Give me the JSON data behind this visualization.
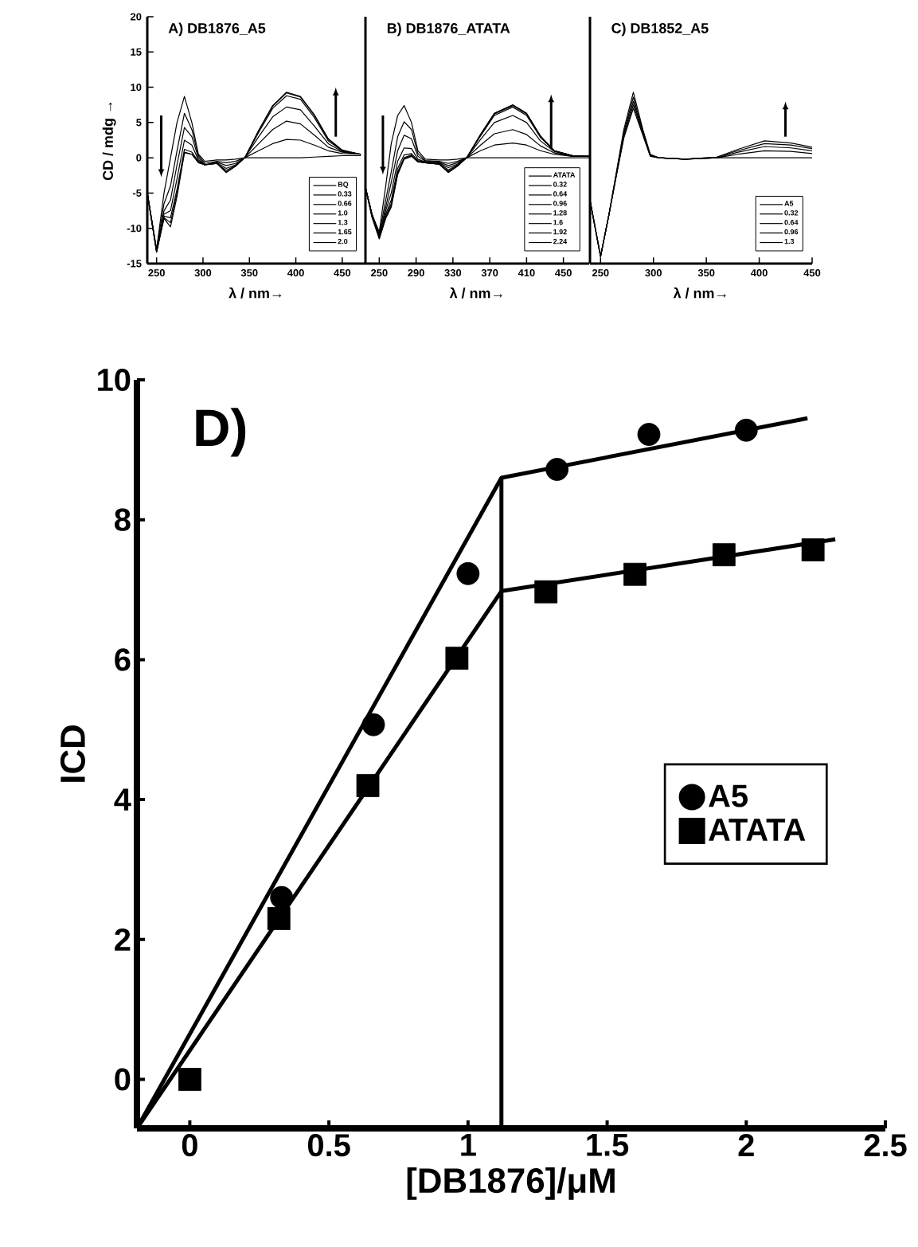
{
  "chart_data": [
    {
      "type": "line",
      "title": "A)   DB1876_A5",
      "xlabel": "λ / nm→",
      "ylabel": "CD / mdg →",
      "xlim": [
        240,
        475
      ],
      "ylim": [
        -15,
        20
      ],
      "xticks": [
        250,
        300,
        350,
        400,
        450
      ],
      "yticks": [
        -15,
        -10,
        -5,
        0,
        5,
        10,
        15,
        20
      ],
      "legend": "bottom right",
      "x": [
        240,
        250,
        258,
        265,
        272,
        280,
        288,
        295,
        302,
        315,
        325,
        335,
        345,
        360,
        375,
        390,
        405,
        420,
        435,
        450,
        470
      ],
      "series": [
        {
          "name": "BQ",
          "color": "#000000",
          "values": [
            -5,
            -13,
            -5,
            0,
            5,
            8.7,
            5,
            0.5,
            -0.5,
            -0.3,
            -0.3,
            -0.2,
            0,
            0,
            0,
            0,
            0,
            0.1,
            0.2,
            0.3,
            0.3
          ]
        },
        {
          "name": "0.33",
          "color": "#000000",
          "values": [
            -5,
            -13,
            -6.5,
            -4,
            1,
            6.3,
            4,
            0.3,
            -0.8,
            -0.5,
            -0.7,
            -0.5,
            0,
            1,
            2,
            2.6,
            2.5,
            1.8,
            1,
            0.6,
            0.5
          ]
        },
        {
          "name": "0.66",
          "color": "#000000",
          "values": [
            -5,
            -13.2,
            -7.5,
            -6,
            -1,
            4.3,
            3,
            0,
            -1,
            -0.6,
            -1.1,
            -0.8,
            0,
            2,
            4,
            5.2,
            4.8,
            3.2,
            1.5,
            0.8,
            0.5
          ]
        },
        {
          "name": "1.0",
          "color": "#000000",
          "values": [
            -5,
            -13.3,
            -8,
            -7.5,
            -3,
            2.5,
            1.8,
            -0.3,
            -1,
            -0.7,
            -1.5,
            -1,
            0,
            3,
            5.8,
            7.2,
            6.8,
            4.5,
            2,
            0.9,
            0.5
          ]
        },
        {
          "name": "1.3",
          "color": "#000000",
          "values": [
            -5,
            -13.3,
            -8.3,
            -8.5,
            -4.5,
            1.2,
            0.8,
            -0.5,
            -1,
            -0.8,
            -1.8,
            -1.1,
            0,
            3.6,
            7,
            8.8,
            8.3,
            5.7,
            2.4,
            1,
            0.5
          ]
        },
        {
          "name": "1.65",
          "color": "#000000",
          "values": [
            -5,
            -13.3,
            -8.5,
            -9.2,
            -5,
            0.8,
            0.5,
            -0.6,
            -1,
            -0.8,
            -2,
            -1.2,
            0,
            3.8,
            7.3,
            9.2,
            8.6,
            6,
            2.6,
            1,
            0.5
          ]
        },
        {
          "name": "2.0",
          "color": "#000000",
          "values": [
            -5,
            -13.4,
            -8.6,
            -9.8,
            -5.5,
            0.7,
            0.5,
            -0.7,
            -1,
            -0.8,
            -2.1,
            -1.2,
            0,
            3.9,
            7.4,
            9.3,
            8.7,
            6.1,
            2.7,
            1.1,
            0.5
          ]
        }
      ]
    },
    {
      "type": "line",
      "title": "B)   DB1876_ATATA",
      "xlabel": "λ / nm→",
      "xlim": [
        235,
        478
      ],
      "ylim": [
        -15,
        20
      ],
      "xticks": [
        250,
        290,
        330,
        370,
        410,
        450
      ],
      "tick_labels": "x",
      "legend": "bottom right",
      "x": [
        235,
        242,
        250,
        257,
        263,
        270,
        277,
        285,
        292,
        300,
        315,
        325,
        335,
        345,
        360,
        375,
        395,
        410,
        425,
        440,
        460,
        478
      ],
      "series": [
        {
          "name": "ATATA",
          "color": "#000000",
          "values": [
            -4.2,
            -8,
            -10.5,
            -4,
            2,
            6,
            7.4,
            5,
            1,
            -0.2,
            -0.3,
            -0.3,
            -0.2,
            0,
            0,
            0,
            0,
            0,
            0,
            0,
            0,
            0
          ]
        },
        {
          "name": "0.32",
          "color": "#000000",
          "values": [
            -4.2,
            -8,
            -10.8,
            -6,
            -2,
            3,
            5.1,
            4,
            0.6,
            -0.4,
            -0.5,
            -0.8,
            -0.5,
            0,
            1,
            1.8,
            2.1,
            1.8,
            1,
            0.5,
            0.2,
            0.2
          ]
        },
        {
          "name": "0.64",
          "color": "#000000",
          "values": [
            -4.2,
            -8,
            -11,
            -7,
            -3.5,
            1,
            3.2,
            2.7,
            0.2,
            -0.5,
            -0.6,
            -1.1,
            -0.7,
            0,
            1.8,
            3.4,
            4,
            3.3,
            1.7,
            0.7,
            0.2,
            0.2
          ]
        },
        {
          "name": "0.96",
          "color": "#000000",
          "values": [
            -4.2,
            -8,
            -11,
            -7.5,
            -5,
            -0.5,
            1.4,
            1.3,
            -0.2,
            -0.6,
            -0.7,
            -1.4,
            -0.9,
            0,
            2.6,
            5,
            6,
            5,
            2.4,
            0.9,
            0.2,
            0.2
          ]
        },
        {
          "name": "1.28",
          "color": "#000000",
          "values": [
            -4.2,
            -8,
            -11.2,
            -8,
            -6,
            -1.5,
            0.4,
            0.6,
            -0.4,
            -0.6,
            -0.8,
            -1.7,
            -1,
            0,
            3.1,
            6,
            7.2,
            6,
            2.9,
            1,
            0.3,
            0.2
          ]
        },
        {
          "name": "1.6",
          "color": "#000000",
          "values": [
            -4.2,
            -8.2,
            -11.3,
            -8.3,
            -6.5,
            -2,
            0,
            0.4,
            -0.5,
            -0.7,
            -0.9,
            -1.9,
            -1.1,
            0,
            3.2,
            6.2,
            7.4,
            6.2,
            3,
            1,
            0.3,
            0.2
          ]
        },
        {
          "name": "1.92",
          "color": "#000000",
          "values": [
            -4.2,
            -8.3,
            -11.4,
            -8.5,
            -6.8,
            -2.2,
            -0.1,
            0.3,
            -0.5,
            -0.7,
            -0.9,
            -2,
            -1.1,
            0,
            3.3,
            6.3,
            7.5,
            6.3,
            3.1,
            1,
            0.3,
            0.2
          ]
        },
        {
          "name": "2.24",
          "color": "#000000",
          "values": [
            -4.2,
            -8.4,
            -11.5,
            -8.6,
            -7,
            -2.4,
            -0.2,
            0.2,
            -0.6,
            -0.7,
            -0.9,
            -2.1,
            -1.2,
            0,
            3.3,
            6.3,
            7.5,
            6.3,
            3.1,
            1,
            0.3,
            0.2
          ]
        }
      ]
    },
    {
      "type": "line",
      "title": "C)   DB1852_A5",
      "xlabel": "λ / nm→",
      "xlim": [
        240,
        450
      ],
      "ylim": [
        -15,
        20
      ],
      "xticks": [
        250,
        300,
        350,
        400,
        450
      ],
      "tick_labels": "x",
      "legend": "bottom right",
      "x": [
        240,
        250,
        258,
        265,
        272,
        281,
        290,
        297,
        305,
        330,
        360,
        380,
        405,
        430,
        450
      ],
      "series": [
        {
          "name": "A5",
          "color": "#000000",
          "values": [
            -6,
            -14,
            -8,
            -2,
            4,
            9.3,
            4,
            0.5,
            0,
            -0.2,
            0,
            0,
            0,
            0,
            0
          ]
        },
        {
          "name": "0.32",
          "color": "#000000",
          "values": [
            -6,
            -14,
            -8,
            -2.2,
            3.6,
            8.6,
            3.8,
            0.4,
            0,
            -0.2,
            0,
            0.5,
            1,
            0.9,
            0.6
          ]
        },
        {
          "name": "0.64",
          "color": "#000000",
          "values": [
            -6,
            -14,
            -8,
            -2.3,
            3.3,
            8,
            3.6,
            0.3,
            0,
            -0.2,
            0,
            0.8,
            1.6,
            1.4,
            1
          ]
        },
        {
          "name": "0.96",
          "color": "#000000",
          "values": [
            -6,
            -14,
            -8,
            -2.4,
            3,
            7.5,
            3.4,
            0.3,
            0,
            -0.2,
            0.1,
            1,
            2,
            1.8,
            1.3
          ]
        },
        {
          "name": "1.3",
          "color": "#000000",
          "values": [
            -6,
            -14,
            -8,
            -2.5,
            2.8,
            7,
            3.2,
            0.2,
            0,
            -0.2,
            0.1,
            1.2,
            2.4,
            2.1,
            1.5
          ]
        }
      ]
    },
    {
      "type": "scatter",
      "xlabel": "[DB1876]/μM",
      "ylabel": "ICD",
      "annotations": [
        "D)"
      ],
      "xlim": [
        -0.19,
        2.5
      ],
      "ylim": [
        -0.7,
        10
      ],
      "xticks": [
        0,
        0.5,
        1,
        1.5,
        2,
        2.5
      ],
      "yticks": [
        0,
        2,
        4,
        6,
        8,
        10
      ],
      "legend": "right",
      "series": [
        {
          "name": "A5",
          "color": "#000000",
          "marker": "circle",
          "x": [
            0.33,
            0.66,
            1.0,
            1.32,
            1.65,
            2.0
          ],
          "values": [
            2.6,
            5.07,
            7.23,
            8.72,
            9.22,
            9.28
          ]
        },
        {
          "name": "ATATA",
          "color": "#000000",
          "marker": "square",
          "x": [
            0,
            0.32,
            0.64,
            0.96,
            1.28,
            1.6,
            1.92,
            2.24
          ],
          "values": [
            0,
            2.3,
            4.2,
            6.02,
            6.97,
            7.22,
            7.5,
            7.57
          ]
        },
        {
          "type": "line",
          "color": "#000000",
          "x": [
            -0.19,
            1.12,
            2.22
          ],
          "values": [
            -0.7,
            8.6,
            9.45
          ]
        },
        {
          "type": "line",
          "color": "#000000",
          "x": [
            -0.19,
            1.12,
            2.32
          ],
          "values": [
            -0.7,
            6.98,
            7.72
          ]
        },
        {
          "type": "line",
          "color": "#000000",
          "x": [
            1.12,
            1.12
          ],
          "values": [
            -0.7,
            8.6
          ]
        }
      ]
    }
  ]
}
